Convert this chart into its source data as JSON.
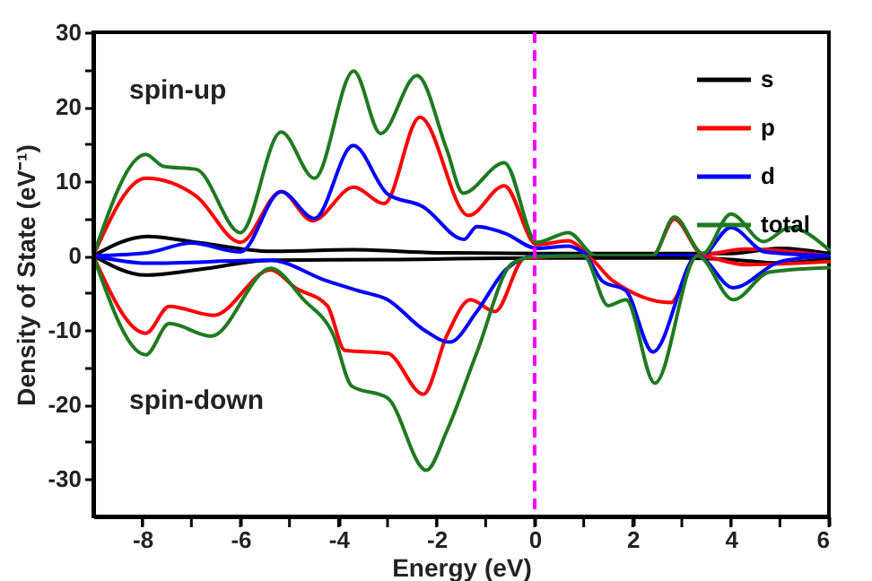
{
  "chart_data": {
    "type": "line",
    "xlabel": "Energy (eV)",
    "ylabel": "Density of State (eV⁻¹)",
    "xlim": [
      -9,
      6
    ],
    "ylim": [
      -35,
      30
    ],
    "xticks": [
      -8,
      {
        "value": -7,
        "label": null
      },
      -6,
      {
        "value": -5,
        "label": null
      },
      -4,
      {
        "value": -3,
        "label": null
      },
      -2,
      {
        "value": -1,
        "label": null
      },
      0,
      {
        "value": 1,
        "label": null
      },
      2,
      {
        "value": 3,
        "label": null
      },
      4,
      {
        "value": 5,
        "label": null
      },
      6
    ],
    "yticks": [
      -30,
      {
        "value": -25,
        "label": null
      },
      -20,
      {
        "value": -15,
        "label": null
      },
      -10,
      {
        "value": -5,
        "label": null
      },
      0,
      {
        "value": 5,
        "label": null
      },
      10,
      {
        "value": 15,
        "label": null
      },
      20,
      {
        "value": 25,
        "label": null
      },
      30
    ],
    "grid": false,
    "legend": "top right",
    "line_style": "solid",
    "marker": "none",
    "annotations": [
      "spin-up",
      "spin-down"
    ],
    "ref_lines": [
      {
        "axis": "x",
        "value": 0,
        "label": null,
        "color": "#ff00ff",
        "line_style": "dashed"
      }
    ],
    "series": [
      {
        "name": "s",
        "color": "#000000",
        "x": [
          -9,
          -7.9,
          -6.8,
          -5.4,
          -3.7,
          -2,
          0,
          2,
          4,
          5,
          6
        ],
        "values": [
          0,
          2.6,
          1.7,
          0.6,
          0.8,
          0.4,
          0.3,
          0.3,
          0.3,
          1,
          0.3
        ]
      },
      {
        "name": "p",
        "color": "#ff0000",
        "x": [
          -9,
          -7.93,
          -6.9,
          -6.0,
          -5.17,
          -4.53,
          -3.69,
          -3.07,
          -2.34,
          -1.35,
          -0.62,
          0.04,
          0.69,
          1.2,
          2.4,
          2.85,
          3.43,
          4.3,
          6
        ],
        "values": [
          0,
          10.4,
          8.0,
          1.8,
          8.6,
          4.7,
          9.2,
          7.0,
          18.6,
          5.4,
          9.4,
          1.5,
          2.0,
          0,
          0,
          4.9,
          0.2,
          0.9,
          0
        ]
      },
      {
        "name": "d",
        "color": "#0000ff",
        "x": [
          -9,
          -7.9,
          -7.0,
          -6.0,
          -5.17,
          -4.49,
          -3.7,
          -3.0,
          -2.28,
          -1.44,
          -1.18,
          -0.6,
          0.04,
          0.69,
          1.2,
          3.4,
          4.0,
          4.7,
          6
        ],
        "values": [
          0,
          0.4,
          1.7,
          0.5,
          8.6,
          5.0,
          14.8,
          8.3,
          6.6,
          2.2,
          3.9,
          3.0,
          1.0,
          1.3,
          0,
          0,
          3.8,
          0.5,
          0
        ]
      },
      {
        "name": "total",
        "color": "#1f7a1f",
        "x": [
          -9,
          -7.93,
          -7.57,
          -6.9,
          -6.0,
          -5.17,
          -4.49,
          -3.69,
          -3.14,
          -2.4,
          -1.79,
          -1.46,
          -0.62,
          0.04,
          0.69,
          1.24,
          2.4,
          2.85,
          3.43,
          4.0,
          4.67,
          5.2,
          6
        ],
        "values": [
          0,
          13.6,
          12.0,
          11.6,
          3.1,
          16.6,
          10.4,
          24.8,
          16.4,
          24.2,
          14.2,
          8.4,
          12.5,
          1.8,
          3.1,
          0,
          0,
          5.2,
          0.3,
          5.6,
          1.9,
          3.8,
          0.8
        ]
      },
      {
        "color": "#000000",
        "x": [
          -9,
          -7.93,
          -6.8,
          -5.4,
          -3,
          0,
          3,
          4,
          5,
          6
        ],
        "values": [
          0,
          -2.6,
          -1.8,
          -0.6,
          -0.5,
          -0.3,
          -0.3,
          -0.5,
          -1,
          -0.3
        ]
      },
      {
        "color": "#ff0000",
        "x": [
          -9,
          -7.93,
          -7.45,
          -6.55,
          -5.38,
          -4.88,
          -4.23,
          -3.87,
          -3.0,
          -2.27,
          -1.79,
          -1.31,
          -0.81,
          -0.2,
          1.0,
          1.6,
          2.77,
          3.32,
          4.3,
          6
        ],
        "values": [
          0,
          -10.4,
          -6.8,
          -8.0,
          -1.9,
          -4.3,
          -6.7,
          -12.7,
          -13.1,
          -18.6,
          -10.7,
          -5.9,
          -7.5,
          -0.3,
          0,
          -3.4,
          -6.3,
          0,
          -1.2,
          -0.8
        ]
      },
      {
        "color": "#0000ff",
        "x": [
          -9,
          -7.9,
          -5.4,
          -4.23,
          -3.6,
          -3.0,
          -2.27,
          -1.73,
          -1.18,
          -0.58,
          0.04,
          1.0,
          1.38,
          1.86,
          2.41,
          3.32,
          4.05,
          5.0,
          6
        ],
        "values": [
          0,
          -1.0,
          -0.6,
          -3.4,
          -4.7,
          -5.9,
          -9.9,
          -11.6,
          -7.5,
          -1.8,
          0,
          0,
          -3.4,
          -4.7,
          -12.9,
          0,
          -4.3,
          -0.8,
          0
        ]
      },
      {
        "color": "#1f7a1f",
        "x": [
          -9,
          -7.93,
          -7.45,
          -6.6,
          -5.38,
          -4.71,
          -4.1,
          -3.73,
          -3.0,
          -2.21,
          -1.79,
          -1.18,
          -0.45,
          0.04,
          1.0,
          1.5,
          1.86,
          2.45,
          3.32,
          4.05,
          4.78,
          6
        ],
        "values": [
          0,
          -13.3,
          -9.1,
          -10.8,
          -1.7,
          -5.9,
          -10.7,
          -17.5,
          -19.1,
          -28.8,
          -23.5,
          -13.0,
          -1.0,
          -0.1,
          0,
          -6.7,
          -5.9,
          -17.1,
          0,
          -5.9,
          -2.2,
          -1.6
        ]
      }
    ]
  }
}
